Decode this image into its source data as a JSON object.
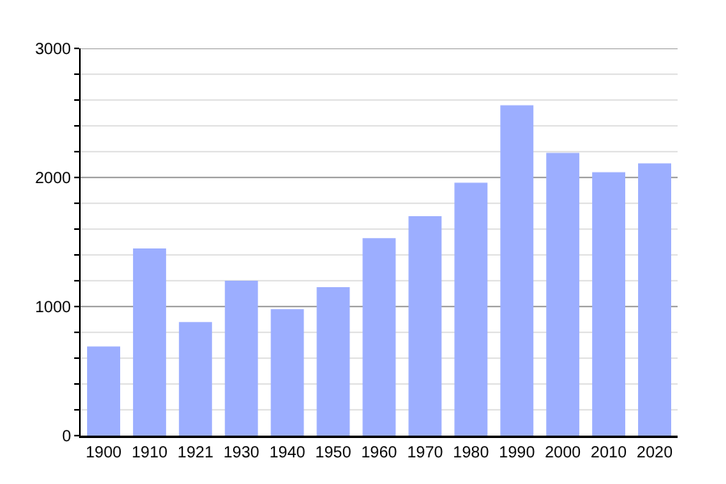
{
  "chart_data": {
    "type": "bar",
    "categories": [
      "1900",
      "1910",
      "1921",
      "1930",
      "1940",
      "1950",
      "1960",
      "1970",
      "1980",
      "1990",
      "2000",
      "2010",
      "2020"
    ],
    "values": [
      690,
      1450,
      880,
      1200,
      980,
      1150,
      1530,
      1700,
      1960,
      2560,
      2190,
      2040,
      2110
    ],
    "color": "#9caeff",
    "ylim": [
      0,
      3000
    ],
    "yticks": [
      0,
      {
        "value": 200,
        "label": null
      },
      {
        "value": 400,
        "label": null
      },
      {
        "value": 600,
        "label": null
      },
      {
        "value": 800,
        "label": null
      },
      1000,
      {
        "value": 1200,
        "label": null
      },
      {
        "value": 1400,
        "label": null
      },
      {
        "value": 1600,
        "label": null
      },
      {
        "value": 1800,
        "label": null
      },
      2000,
      {
        "value": 2200,
        "label": null
      },
      {
        "value": 2400,
        "label": null
      },
      {
        "value": 2600,
        "label": null
      },
      {
        "value": 2800,
        "label": null
      },
      3000
    ],
    "grid": true
  }
}
